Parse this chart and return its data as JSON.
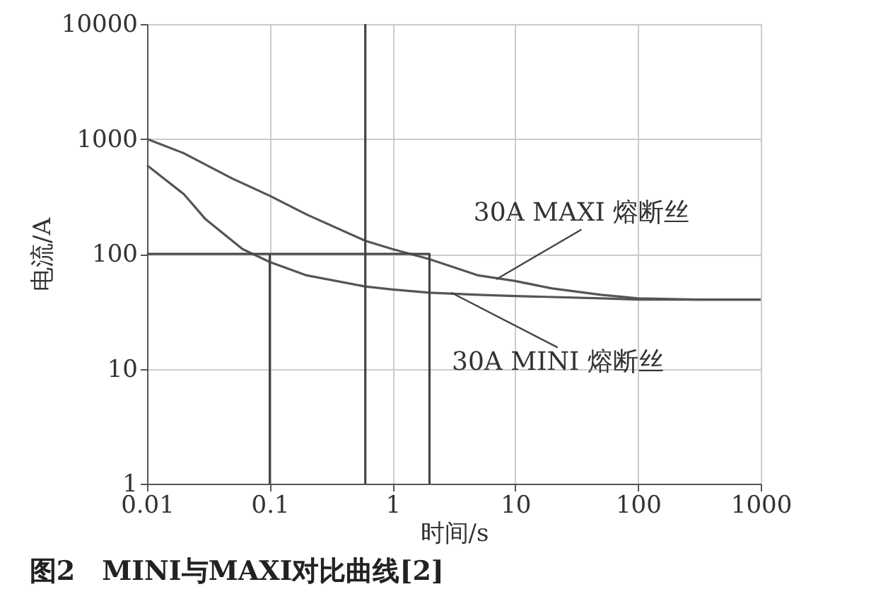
{
  "chart_data": {
    "type": "line",
    "title": "图2　MINI与MAXI对比曲线[2]",
    "xlabel": "时间/s",
    "ylabel": "电流/A",
    "log": "xy",
    "grid": true,
    "xlim": [
      0.01,
      1000
    ],
    "ylim": [
      1,
      10000
    ],
    "xticks": [
      0.01,
      0.1,
      1,
      10,
      100,
      1000
    ],
    "yticks": [
      1,
      10,
      100,
      1000,
      10000
    ],
    "series": [
      {
        "color": "#555555",
        "x": [
          0.01,
          0.02,
          0.05,
          0.1,
          0.2,
          0.6,
          1,
          2,
          5,
          10,
          20,
          50,
          100,
          300,
          1000
        ],
        "values": [
          1000,
          750,
          450,
          320,
          220,
          130,
          110,
          90,
          65,
          58,
          50,
          44,
          41,
          40,
          40
        ]
      },
      {
        "color": "#555555",
        "x": [
          0.01,
          0.02,
          0.03,
          0.06,
          0.1,
          0.2,
          0.6,
          1,
          2,
          5,
          10,
          50,
          100,
          1000
        ],
        "values": [
          590,
          330,
          200,
          110,
          85,
          65,
          52,
          49,
          46,
          44,
          43,
          41,
          40,
          40
        ]
      },
      {
        "color": "#444444",
        "x": [
          0.01,
          2,
          2
        ],
        "values": [
          100,
          100,
          1
        ]
      },
      {
        "color": "#444444",
        "x": [
          0.1,
          0.1
        ],
        "values": [
          100,
          1
        ]
      }
    ],
    "ref_lines": [
      {
        "axis": "x",
        "value": 0.6,
        "color": "#444444"
      }
    ],
    "annotations": [
      {
        "text": "30A MAXI 熔断丝",
        "x": 7,
        "y": 60
      },
      {
        "text": "30A MINI 熔断丝",
        "x": 3,
        "y": 46
      }
    ],
    "tick_labels": "xy"
  }
}
